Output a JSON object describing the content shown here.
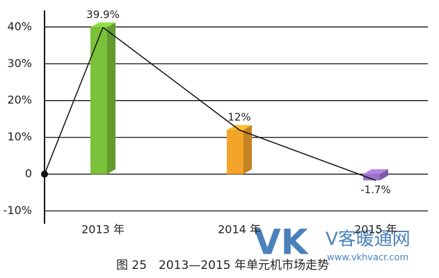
{
  "chart_data": {
    "type": "bar",
    "title": "图 25　2013—2015 年单元机市场走势",
    "categories": [
      "2013 年",
      "2014 年",
      "2015 年"
    ],
    "values": [
      39.9,
      12,
      -1.7
    ],
    "value_labels": [
      "39.9%",
      "12%",
      "-1.7%"
    ],
    "colors": [
      "#7cc13a",
      "#f5a42a",
      "#9c72c8"
    ],
    "line_color": "#111",
    "ylim": [
      -13.5,
      44.5
    ],
    "yticks": [
      {
        "value": -10,
        "label": "-10%"
      },
      0,
      {
        "value": 10,
        "label": "10%"
      },
      {
        "value": 20,
        "label": "20%"
      },
      {
        "value": 30,
        "label": "30%"
      },
      {
        "value": 40,
        "label": "40%"
      }
    ],
    "grid": true
  },
  "watermark": {
    "logo": "VK",
    "name": "V客暖通网",
    "url": "www.vkhvacr.com"
  }
}
